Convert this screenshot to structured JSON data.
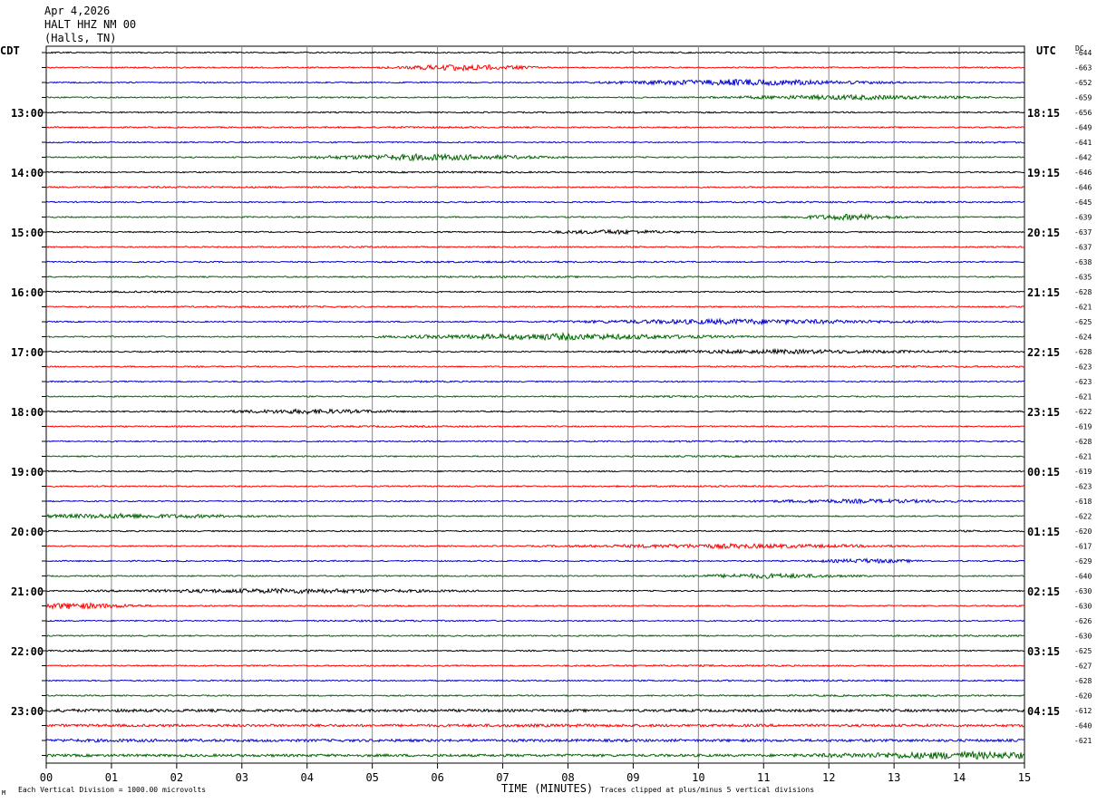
{
  "header": {
    "date": "Apr 4,2026",
    "station": "HALT HHZ NM 00",
    "location": "(Halls, TN)"
  },
  "labels": {
    "left_tz": "CDT",
    "right_tz": "UTC",
    "dc": "DC"
  },
  "footer": {
    "scale": "Each Vertical Division = 1000.00 microvolts",
    "xlabel": "TIME (MINUTES)",
    "clip": "Traces clipped at plus/minus 5 vertical divisions",
    "icon": "M"
  },
  "colors": {
    "trace_cycle": [
      "#000000",
      "#ff0000",
      "#0000cc",
      "#006600"
    ],
    "grid": "#888888"
  },
  "chart_data": {
    "type": "line",
    "title": "",
    "xlabel": "TIME (MINUTES)",
    "ylabel": "",
    "xlim": [
      0,
      15
    ],
    "x_ticks": [
      "00",
      "01",
      "02",
      "03",
      "04",
      "05",
      "06",
      "07",
      "08",
      "09",
      "10",
      "11",
      "12",
      "13",
      "14",
      "15"
    ],
    "left_hour_labels": [
      "13:00",
      "14:00",
      "15:00",
      "16:00",
      "17:00",
      "18:00",
      "19:00",
      "20:00",
      "21:00",
      "22:00",
      "23:00"
    ],
    "right_hour_labels": [
      "18:15",
      "19:15",
      "20:15",
      "21:15",
      "22:15",
      "23:15",
      "00:15",
      "01:15",
      "02:15",
      "03:15",
      "04:15"
    ],
    "hour_label_rows": [
      4,
      8,
      12,
      16,
      20,
      24,
      28,
      32,
      36,
      40,
      44
    ],
    "dc_offsets": [
      -644,
      -663,
      -652,
      -659,
      -656,
      -649,
      -641,
      -642,
      -646,
      -646,
      -645,
      -639,
      -637,
      -637,
      -638,
      -635,
      -628,
      -621,
      -625,
      -624,
      -628,
      -623,
      -623,
      -621,
      -622,
      -619,
      -628,
      -621,
      -619,
      -623,
      -618,
      -622,
      -620,
      -617,
      -629,
      -640,
      -630,
      -630,
      -626,
      -630,
      -625,
      -627,
      -628,
      -620,
      -612,
      -640,
      -621
    ],
    "trace_count": 48,
    "grid": true
  }
}
